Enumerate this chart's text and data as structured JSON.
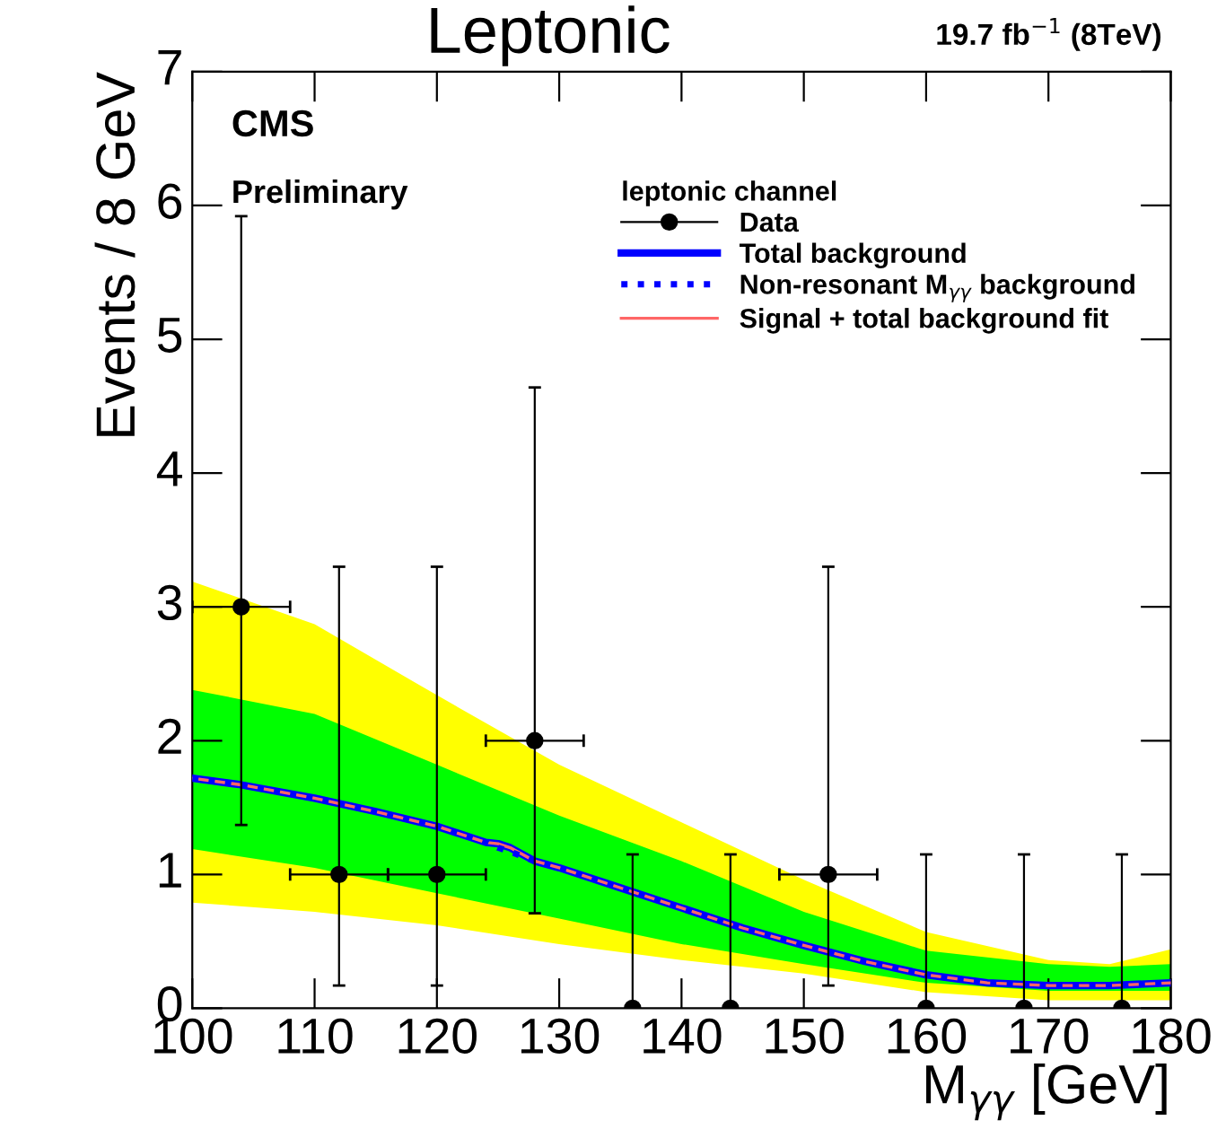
{
  "chart_data": {
    "type": "line",
    "title": "Leptonic",
    "xlabel": "M$_{γγ}$ [GeV]",
    "ylabel": "Events / 8 GeV",
    "legend_title": "leptonic channel",
    "annotations": [
      "CMS",
      "Preliminary",
      "19.7 fb$^{−1}$ (8TeV)"
    ],
    "xlim": [
      100,
      180
    ],
    "ylim": [
      0,
      7
    ],
    "xticks": [
      100,
      110,
      120,
      130,
      140,
      150,
      160,
      170,
      180
    ],
    "yticks": [
      0,
      1,
      2,
      3,
      4,
      5,
      6,
      7
    ],
    "grid": false,
    "legend": "top right",
    "series": [
      {
        "type": "area",
        "color": "#ffff00",
        "x": [
          100,
          110,
          120,
          130,
          140,
          150,
          160,
          170,
          175,
          180
        ],
        "values": [
          null,
          null,
          null,
          null,
          null,
          null,
          null,
          null,
          null,
          null
        ],
        "lower": [
          0.79,
          0.72,
          0.62,
          0.48,
          0.36,
          0.26,
          0.12,
          0.06,
          0.06,
          0.06
        ],
        "upper": [
          3.19,
          2.87,
          2.34,
          1.82,
          1.39,
          0.96,
          0.57,
          0.36,
          0.33,
          0.44
        ]
      },
      {
        "type": "area",
        "color": "#00ff00",
        "x": [
          100,
          110,
          120,
          130,
          140,
          150,
          160,
          170,
          175,
          180
        ],
        "values": [
          null,
          null,
          null,
          null,
          null,
          null,
          null,
          null,
          null,
          null
        ],
        "lower": [
          1.19,
          1.05,
          0.86,
          0.67,
          0.48,
          0.33,
          0.19,
          0.13,
          0.13,
          0.13
        ],
        "upper": [
          2.38,
          2.2,
          1.82,
          1.44,
          1.1,
          0.72,
          0.43,
          0.33,
          0.31,
          0.33
        ]
      },
      {
        "name": "Total background",
        "color": "#0000ff",
        "line_style": "solid",
        "x": [
          100,
          104,
          110,
          115,
          120,
          124,
          125,
          126,
          128,
          130,
          135,
          140,
          145,
          150,
          155,
          160,
          165,
          170,
          175,
          180
        ],
        "values": [
          1.72,
          1.67,
          1.57,
          1.47,
          1.36,
          1.24,
          1.23,
          1.2,
          1.1,
          1.05,
          0.9,
          0.75,
          0.6,
          0.47,
          0.35,
          0.25,
          0.19,
          0.17,
          0.17,
          0.19
        ]
      },
      {
        "name": "Non-resonant M$_{γγ}$ background",
        "color": "#0000ff",
        "line_style": "dotted",
        "x": [
          100,
          104,
          110,
          115,
          120,
          124,
          125,
          126,
          128,
          130,
          135,
          140,
          145,
          150,
          155,
          160,
          165,
          170,
          175,
          180
        ],
        "values": [
          1.72,
          1.67,
          1.57,
          1.47,
          1.36,
          1.24,
          1.2,
          1.17,
          1.1,
          1.05,
          0.9,
          0.75,
          0.6,
          0.47,
          0.35,
          0.25,
          0.19,
          0.17,
          0.17,
          0.19
        ]
      },
      {
        "name": "Signal + total background fit",
        "color": "#ff6666",
        "line_style": "solid",
        "x": [
          100,
          104,
          110,
          115,
          120,
          124,
          125,
          126,
          128,
          130,
          135,
          140,
          145,
          150,
          155,
          160,
          165,
          170,
          175,
          180
        ],
        "values": [
          1.72,
          1.67,
          1.57,
          1.47,
          1.36,
          1.24,
          1.23,
          1.2,
          1.1,
          1.05,
          0.9,
          0.75,
          0.6,
          0.47,
          0.35,
          0.25,
          0.19,
          0.17,
          0.17,
          0.19
        ]
      },
      {
        "type": "scatter",
        "name": "Data",
        "color": "#000000",
        "marker": "circle",
        "x": [
          104,
          112,
          120,
          128,
          136,
          144,
          152,
          160,
          168,
          176
        ],
        "values": [
          3,
          1,
          1,
          2,
          0,
          0,
          1,
          0,
          0,
          0
        ],
        "errors": [
          [
            1.37,
            5.92
          ],
          [
            0.17,
            3.3
          ],
          [
            0.17,
            3.3
          ],
          [
            0.71,
            4.64
          ],
          [
            0,
            1.15
          ],
          [
            0,
            1.15
          ],
          [
            0.17,
            3.3
          ],
          [
            0,
            1.15
          ],
          [
            0,
            1.15
          ],
          [
            0,
            1.15
          ]
        ],
        "xerrors": [
          4,
          4,
          4,
          4,
          null,
          null,
          4,
          null,
          null,
          null
        ]
      }
    ]
  }
}
